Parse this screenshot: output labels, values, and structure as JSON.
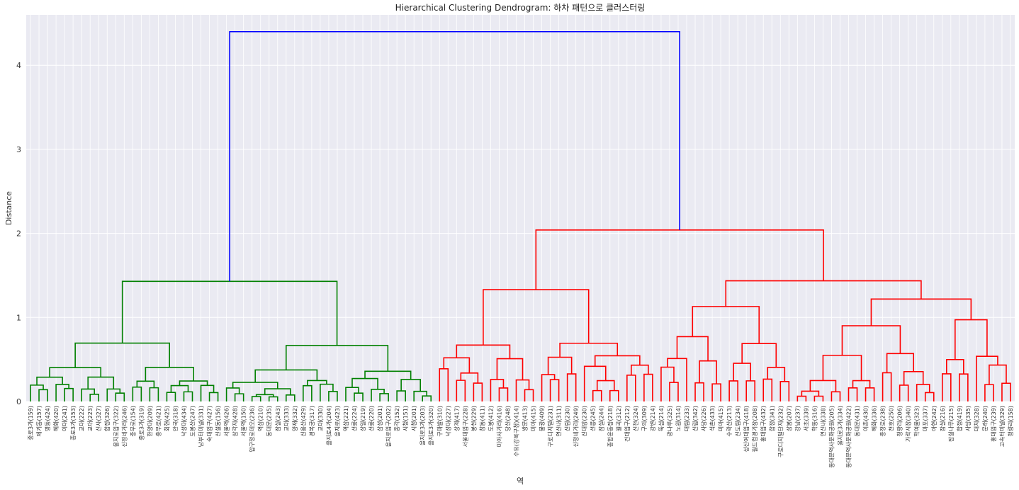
{
  "chart_data": {
    "type": "dendrogram",
    "title": "Hierarchical Clustering Dendrogram: 하차 패턴으로 클러스터링",
    "xlabel": "역",
    "ylabel": "Distance",
    "ylim": [
      0,
      4.6
    ],
    "yticks": [
      0,
      1,
      2,
      3,
      4
    ],
    "grid": true,
    "colors": {
      "background": "#eaeaf2",
      "grid": "#ffffff",
      "root": "#0000ff",
      "cluster_a": "#008000",
      "cluster_b": "#ff0000"
    },
    "leaves": [
      "종로3가(159)",
      "제기동(157)",
      "명동(424)",
      "혜화(420)",
      "이대(241)",
      "종로3가(153)",
      "교대(222)",
      "교대(223)",
      "신사(327)",
      "합정(326)",
      "을지로입구(322)",
      "신정네거리(246)",
      "충무로(154)",
      "종로3가(319)",
      "한양대(209)",
      "충무로(421)",
      "회현(425)",
      "안국(318)",
      "낙성대(434)",
      "도봉산(247)",
      "남부터미널(331)",
      "숙대입구(427)",
      "신설동(156)",
      "서울역(426)",
      "삼각지(428)",
      "서울역(150)",
      "압구정로데오(236)",
      "역삼(210)",
      "동대문(235)",
      "잠실(243)",
      "교대(333)",
      "양재(332)",
      "신용산(429)",
      "경복궁(317)",
      "교대(330)",
      "을지로4가(204)",
      "을지로(423)",
      "역삼(221)",
      "선릉(224)",
      "상일(219)",
      "선릉(220)",
      "삼성(201)",
      "을지로입구(202)",
      "종각(152)",
      "시청(151)",
      "시청(201)",
      "을지로3가(203)",
      "을지로3가(320)",
      "구파발(310)",
      "낙성대(227)",
      "상계(417)",
      "서울대입구(228)",
      "봉천(229)",
      "창동(411)",
      "도봉(412)",
      "미아사거리(416)",
      "당산(248)",
      "수유(강북구청)(414)",
      "쌍문(413)",
      "미아(415)",
      "불광(409)",
      "구로디지털(231)",
      "연신내(311)",
      "신림(230)",
      "신정네거리(249)",
      "신대방(230)",
      "선릉(245)",
      "잠실(244)",
      "종합운동장(218)",
      "월곡(312)",
      "건대입구(212)",
      "신천(324)",
      "구의(309)",
      "강변(214)",
      "뚝섬(214)",
      "광나루(325)",
      "노원(314)",
      "대림(233)",
      "신림(342)",
      "사당(226)",
      "석촌(433)",
      "미아(415)",
      "수락산(213)",
      "신도림(234)",
      "성신여대입구(418)",
      "월드컵경기장(208)",
      "홍대입구(432)",
      "합정(341)",
      "구로디지털단지(232)",
      "상봉(207)",
      "강남(237)",
      "서초(339)",
      "학동(316)",
      "연신내(338)",
      "동대문역사문화공원(205)",
      "을지로3가(334)",
      "동대문역사문화공원(422)",
      "동대문(431)",
      "이촌(430)",
      "혜화(336)",
      "충정로(238)",
      "천호(250)",
      "청량리(206)",
      "가락시장(340)",
      "학여울(323)",
      "마포(337)",
      "아현(242)",
      "잠실(216)",
      "잠실나루(215)",
      "합정(419)",
      "사당(335)",
      "대치(328)",
      "문래(240)",
      "홍대입구(239)",
      "고속터미널(329)",
      "청량리(158)"
    ]
  }
}
